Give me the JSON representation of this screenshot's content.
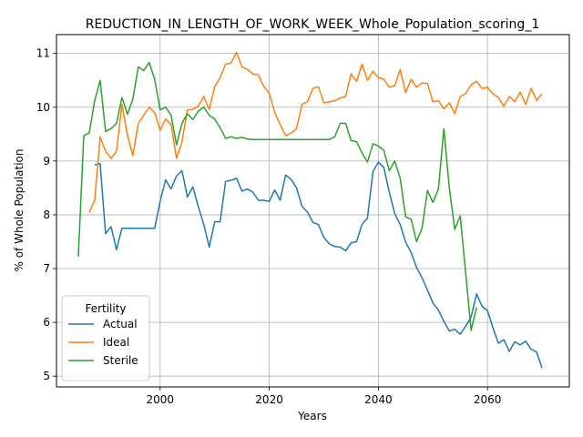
{
  "chart_data": {
    "type": "line",
    "title": "REDUCTION_IN_LENGTH_OF_WORK_WEEK_Whole_Population_scoring_1",
    "xlabel": "Years",
    "ylabel": "% of Whole Population",
    "xlim": [
      1981,
      2075
    ],
    "ylim": [
      4.8,
      11.35
    ],
    "xticks": [
      2000,
      2020,
      2040,
      2060
    ],
    "yticks": [
      5,
      6,
      7,
      8,
      9,
      10,
      11
    ],
    "grid": true,
    "legend": {
      "title": "Fertility",
      "placement": "lower-left"
    },
    "series": [
      {
        "name": "Actual",
        "color": "#1f77b4",
        "points": [
          [
            1988,
            8.93
          ],
          [
            1989,
            8.95
          ],
          [
            1990,
            7.65
          ],
          [
            1991,
            7.78
          ],
          [
            1992,
            7.35
          ],
          [
            1993,
            7.75
          ],
          [
            1994,
            7.75
          ],
          [
            1995,
            7.75
          ],
          [
            1996,
            7.75
          ],
          [
            1997,
            7.75
          ],
          [
            1998,
            7.75
          ],
          [
            1999,
            7.75
          ],
          [
            2000,
            8.25
          ],
          [
            2001,
            8.65
          ],
          [
            2002,
            8.48
          ],
          [
            2003,
            8.72
          ],
          [
            2004,
            8.82
          ],
          [
            2005,
            8.33
          ],
          [
            2006,
            8.52
          ],
          [
            2007,
            8.15
          ],
          [
            2008,
            7.82
          ],
          [
            2009,
            7.4
          ],
          [
            2010,
            7.87
          ],
          [
            2011,
            7.87
          ],
          [
            2012,
            8.62
          ],
          [
            2013,
            8.64
          ],
          [
            2014,
            8.68
          ],
          [
            2015,
            8.44
          ],
          [
            2016,
            8.48
          ],
          [
            2017,
            8.42
          ],
          [
            2018,
            8.27
          ],
          [
            2019,
            8.27
          ],
          [
            2020,
            8.25
          ],
          [
            2021,
            8.46
          ],
          [
            2022,
            8.27
          ],
          [
            2023,
            8.74
          ],
          [
            2024,
            8.66
          ],
          [
            2025,
            8.5
          ],
          [
            2026,
            8.16
          ],
          [
            2027,
            8.05
          ],
          [
            2028,
            7.86
          ],
          [
            2029,
            7.82
          ],
          [
            2030,
            7.58
          ],
          [
            2031,
            7.46
          ],
          [
            2032,
            7.41
          ],
          [
            2033,
            7.4
          ],
          [
            2034,
            7.33
          ],
          [
            2035,
            7.48
          ],
          [
            2036,
            7.5
          ],
          [
            2037,
            7.82
          ],
          [
            2038,
            7.94
          ],
          [
            2039,
            8.8
          ],
          [
            2040,
            8.98
          ],
          [
            2041,
            8.88
          ],
          [
            2042,
            8.42
          ],
          [
            2043,
            8.02
          ],
          [
            2044,
            7.82
          ],
          [
            2045,
            7.49
          ],
          [
            2046,
            7.3
          ],
          [
            2047,
            7.02
          ],
          [
            2048,
            6.83
          ],
          [
            2049,
            6.6
          ],
          [
            2050,
            6.36
          ],
          [
            2051,
            6.23
          ],
          [
            2052,
            6.02
          ],
          [
            2053,
            5.84
          ],
          [
            2054,
            5.87
          ],
          [
            2055,
            5.78
          ],
          [
            2056,
            5.93
          ],
          [
            2057,
            6.1
          ],
          [
            2058,
            6.53
          ],
          [
            2059,
            6.3
          ],
          [
            2060,
            6.22
          ],
          [
            2061,
            5.9
          ],
          [
            2062,
            5.61
          ],
          [
            2063,
            5.68
          ],
          [
            2064,
            5.46
          ],
          [
            2065,
            5.64
          ],
          [
            2066,
            5.58
          ],
          [
            2067,
            5.65
          ],
          [
            2068,
            5.5
          ],
          [
            2069,
            5.45
          ],
          [
            2070,
            5.15
          ]
        ]
      },
      {
        "name": "Ideal",
        "color": "#ff7f0e",
        "points": [
          [
            1987,
            8.04
          ],
          [
            1988,
            8.27
          ],
          [
            1989,
            9.45
          ],
          [
            1990,
            9.18
          ],
          [
            1991,
            9.05
          ],
          [
            1992,
            9.18
          ],
          [
            1993,
            10.05
          ],
          [
            1994,
            9.48
          ],
          [
            1995,
            9.1
          ],
          [
            1996,
            9.7
          ],
          [
            1997,
            9.85
          ],
          [
            1998,
            10.0
          ],
          [
            1999,
            9.9
          ],
          [
            2000,
            9.57
          ],
          [
            2001,
            9.78
          ],
          [
            2002,
            9.68
          ],
          [
            2003,
            9.05
          ],
          [
            2004,
            9.35
          ],
          [
            2005,
            9.95
          ],
          [
            2006,
            9.96
          ],
          [
            2007,
            10.02
          ],
          [
            2008,
            10.2
          ],
          [
            2009,
            9.96
          ],
          [
            2010,
            10.38
          ],
          [
            2011,
            10.55
          ],
          [
            2012,
            10.8
          ],
          [
            2013,
            10.82
          ],
          [
            2014,
            11.02
          ],
          [
            2015,
            10.75
          ],
          [
            2016,
            10.7
          ],
          [
            2017,
            10.62
          ],
          [
            2018,
            10.6
          ],
          [
            2019,
            10.38
          ],
          [
            2020,
            10.26
          ],
          [
            2021,
            9.9
          ],
          [
            2022,
            9.68
          ],
          [
            2023,
            9.47
          ],
          [
            2024,
            9.52
          ],
          [
            2025,
            9.6
          ],
          [
            2026,
            10.05
          ],
          [
            2027,
            10.1
          ],
          [
            2028,
            10.35
          ],
          [
            2029,
            10.38
          ],
          [
            2030,
            10.08
          ],
          [
            2031,
            10.1
          ],
          [
            2032,
            10.12
          ],
          [
            2033,
            10.17
          ],
          [
            2034,
            10.2
          ],
          [
            2035,
            10.62
          ],
          [
            2036,
            10.48
          ],
          [
            2037,
            10.8
          ],
          [
            2038,
            10.5
          ],
          [
            2039,
            10.67
          ],
          [
            2040,
            10.55
          ],
          [
            2041,
            10.52
          ],
          [
            2042,
            10.37
          ],
          [
            2043,
            10.4
          ],
          [
            2044,
            10.7
          ],
          [
            2045,
            10.27
          ],
          [
            2046,
            10.52
          ],
          [
            2047,
            10.37
          ],
          [
            2048,
            10.45
          ],
          [
            2049,
            10.44
          ],
          [
            2050,
            10.1
          ],
          [
            2051,
            10.12
          ],
          [
            2052,
            9.97
          ],
          [
            2053,
            10.08
          ],
          [
            2054,
            9.88
          ],
          [
            2055,
            10.2
          ],
          [
            2056,
            10.25
          ],
          [
            2057,
            10.42
          ],
          [
            2058,
            10.48
          ],
          [
            2059,
            10.35
          ],
          [
            2060,
            10.37
          ],
          [
            2061,
            10.25
          ],
          [
            2062,
            10.18
          ],
          [
            2063,
            10.02
          ],
          [
            2064,
            10.2
          ],
          [
            2065,
            10.1
          ],
          [
            2066,
            10.28
          ],
          [
            2067,
            10.05
          ],
          [
            2068,
            10.35
          ],
          [
            2069,
            10.13
          ],
          [
            2070,
            10.25
          ]
        ]
      },
      {
        "name": "Sterile",
        "color": "#2ca02c",
        "points": [
          [
            1985,
            7.22
          ],
          [
            1986,
            9.47
          ],
          [
            1987,
            9.52
          ],
          [
            1988,
            10.12
          ],
          [
            1989,
            10.5
          ],
          [
            1990,
            9.55
          ],
          [
            1991,
            9.6
          ],
          [
            1992,
            9.7
          ],
          [
            1993,
            10.18
          ],
          [
            1994,
            9.87
          ],
          [
            1995,
            10.15
          ],
          [
            1996,
            10.75
          ],
          [
            1997,
            10.68
          ],
          [
            1998,
            10.83
          ],
          [
            1999,
            10.52
          ],
          [
            2000,
            9.95
          ],
          [
            2001,
            10.0
          ],
          [
            2002,
            9.85
          ],
          [
            2003,
            9.3
          ],
          [
            2004,
            9.7
          ],
          [
            2005,
            9.88
          ],
          [
            2006,
            9.77
          ],
          [
            2007,
            9.93
          ],
          [
            2008,
            10.0
          ],
          [
            2009,
            9.85
          ],
          [
            2010,
            9.78
          ],
          [
            2011,
            9.62
          ],
          [
            2012,
            9.42
          ],
          [
            2013,
            9.45
          ],
          [
            2014,
            9.42
          ],
          [
            2015,
            9.44
          ],
          [
            2016,
            9.41
          ],
          [
            2017,
            9.4
          ],
          [
            2018,
            9.4
          ],
          [
            2019,
            9.4
          ],
          [
            2020,
            9.4
          ],
          [
            2021,
            9.4
          ],
          [
            2022,
            9.4
          ],
          [
            2023,
            9.4
          ],
          [
            2024,
            9.4
          ],
          [
            2025,
            9.4
          ],
          [
            2026,
            9.4
          ],
          [
            2027,
            9.4
          ],
          [
            2028,
            9.4
          ],
          [
            2029,
            9.4
          ],
          [
            2030,
            9.4
          ],
          [
            2031,
            9.4
          ],
          [
            2032,
            9.45
          ],
          [
            2033,
            9.7
          ],
          [
            2034,
            9.7
          ],
          [
            2035,
            9.38
          ],
          [
            2036,
            9.36
          ],
          [
            2037,
            9.15
          ],
          [
            2038,
            8.98
          ],
          [
            2039,
            9.32
          ],
          [
            2040,
            9.28
          ],
          [
            2041,
            9.2
          ],
          [
            2042,
            8.82
          ],
          [
            2043,
            9.0
          ],
          [
            2044,
            8.68
          ],
          [
            2045,
            7.96
          ],
          [
            2046,
            7.92
          ],
          [
            2047,
            7.5
          ],
          [
            2048,
            7.75
          ],
          [
            2049,
            8.45
          ],
          [
            2050,
            8.23
          ],
          [
            2051,
            8.48
          ],
          [
            2052,
            9.6
          ],
          [
            2053,
            8.5
          ],
          [
            2054,
            7.73
          ],
          [
            2055,
            7.98
          ],
          [
            2056,
            6.92
          ],
          [
            2057,
            5.85
          ],
          [
            2058,
            6.28
          ]
        ]
      }
    ]
  }
}
